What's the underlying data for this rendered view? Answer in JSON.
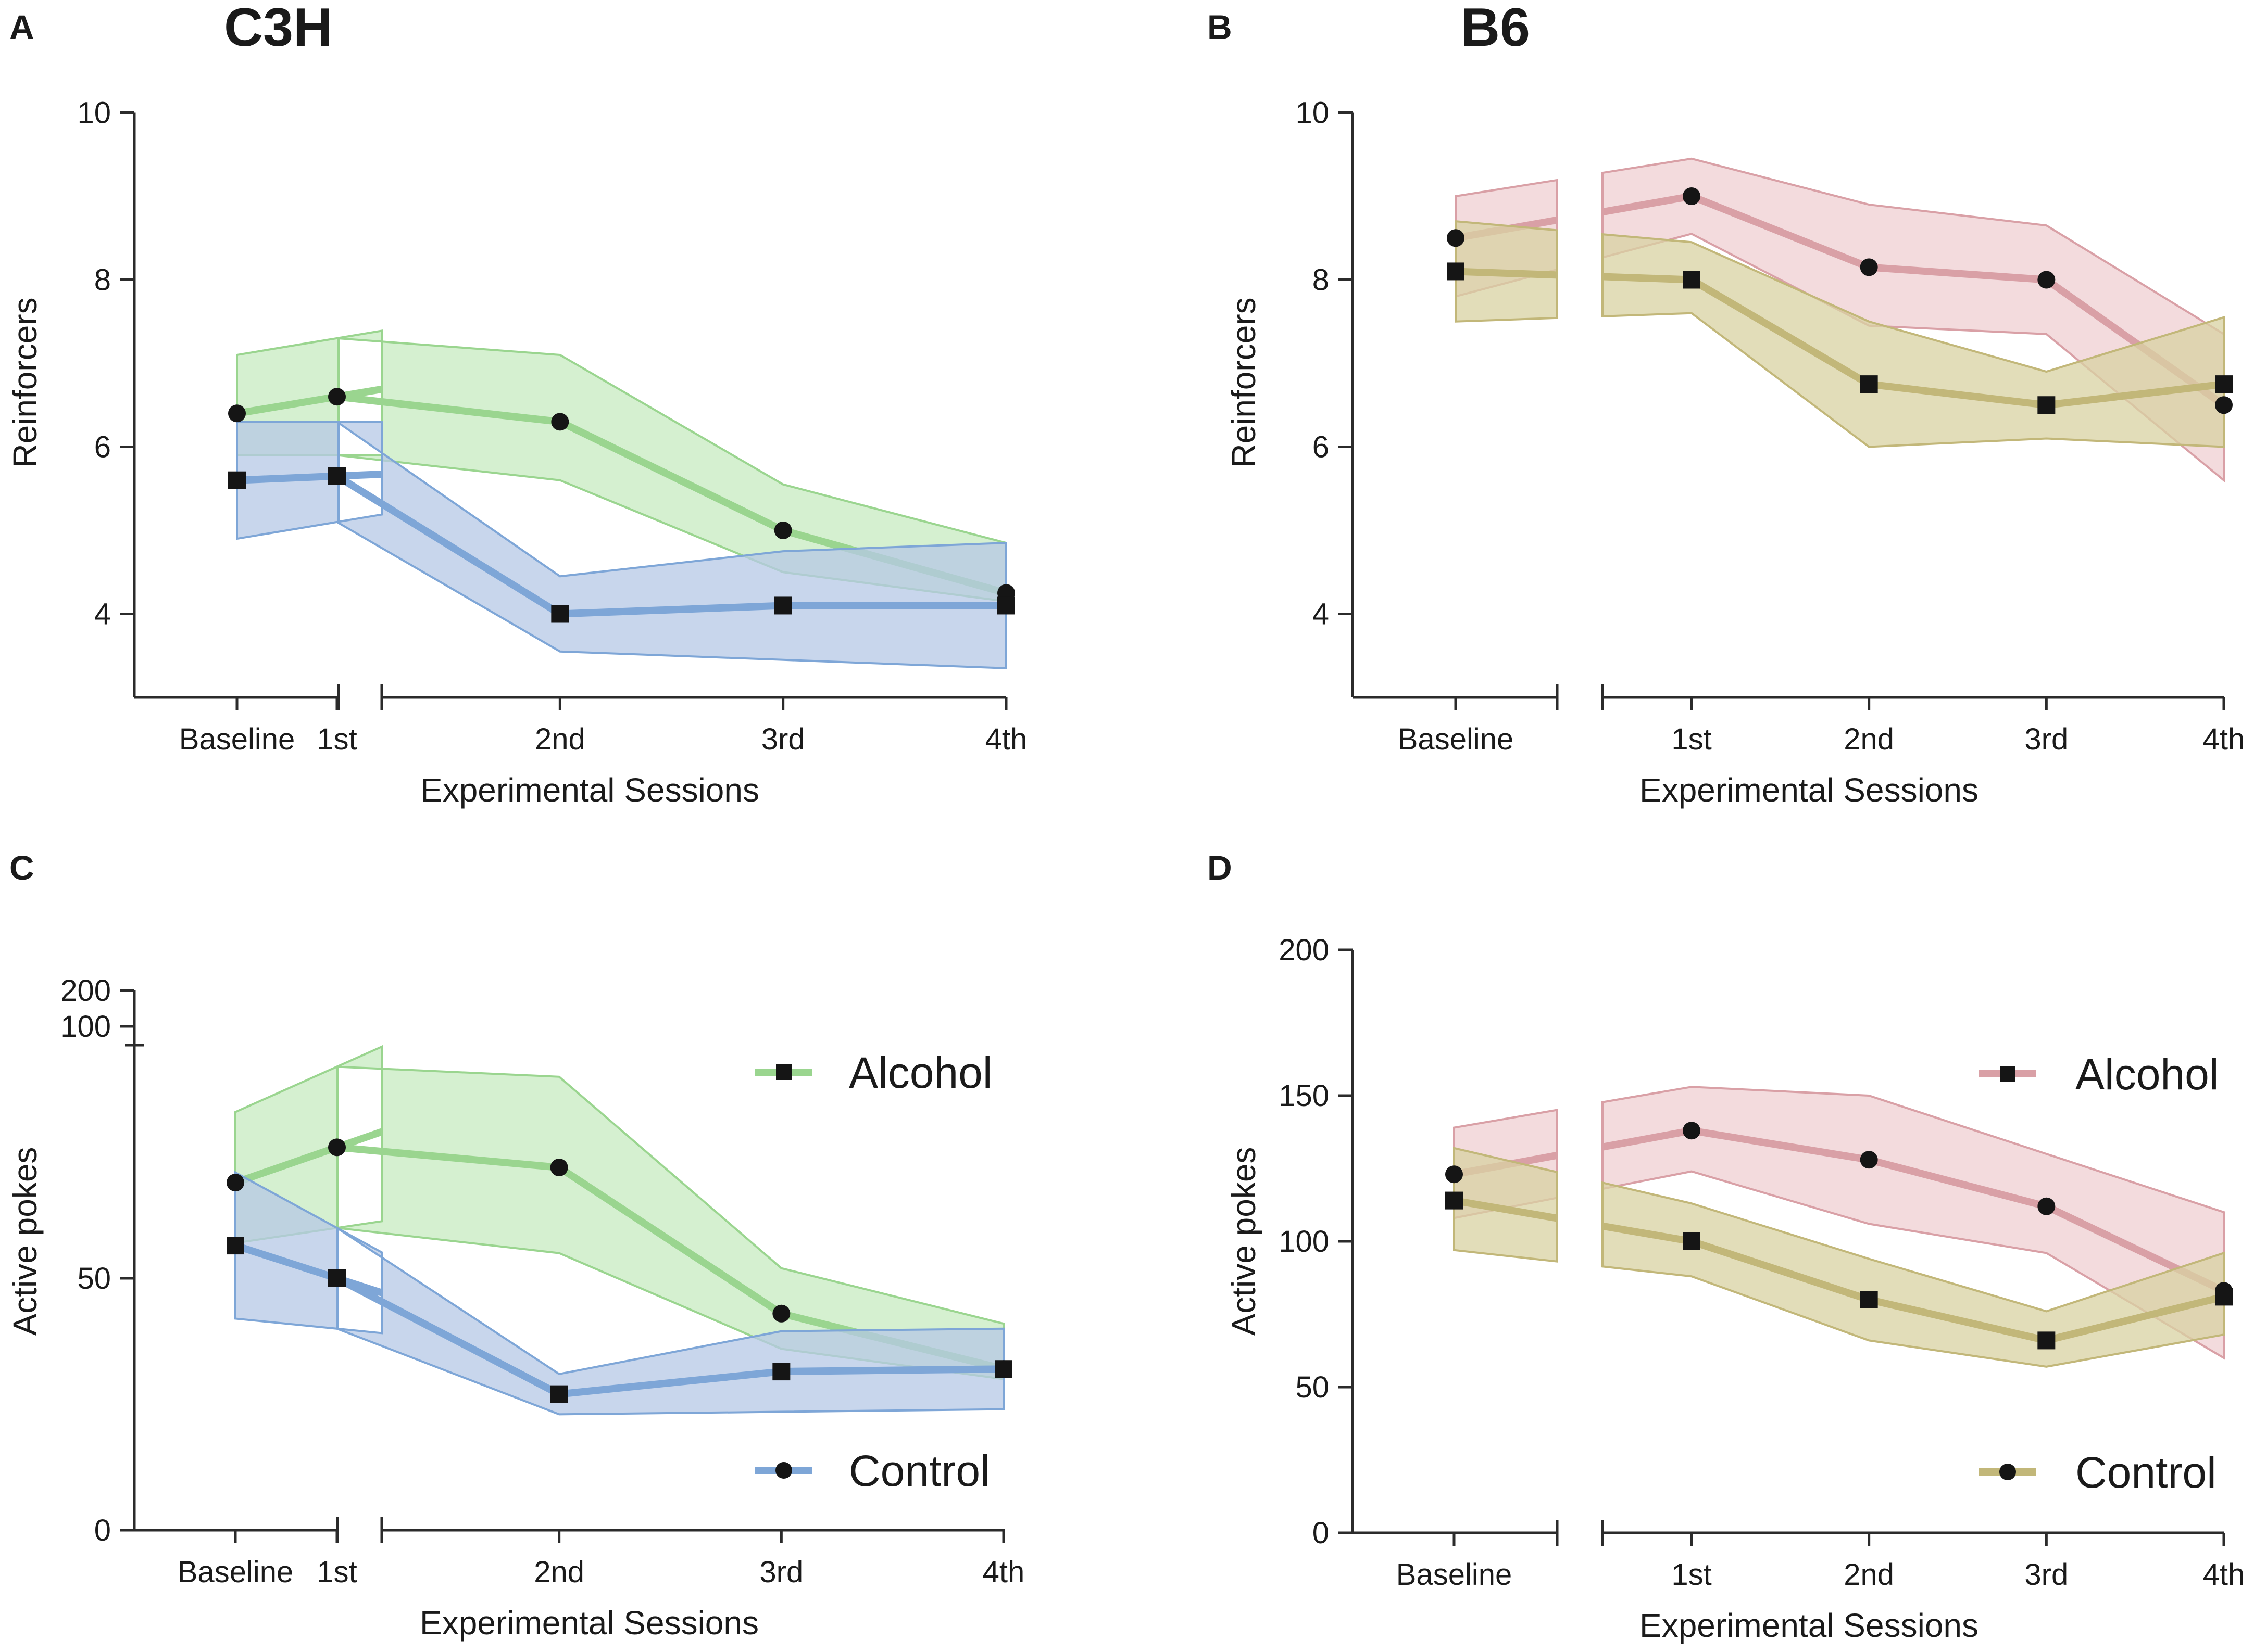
{
  "figure": {
    "panels": [
      {
        "letter": "A",
        "strain": "C3H"
      },
      {
        "letter": "B",
        "strain": "B6"
      },
      {
        "letter": "C",
        "strain": ""
      },
      {
        "letter": "D",
        "strain": ""
      }
    ]
  },
  "chart_data": [
    {
      "panel": "A",
      "type": "line",
      "title": "C3H",
      "xlabel": "Experimental Sessions",
      "ylabel": "Reinforcers",
      "categories": [
        "Baseline",
        "1st",
        "2nd",
        "3rd",
        "4th"
      ],
      "ylim": [
        3,
        10
      ],
      "yticks": [
        4,
        6,
        8,
        10
      ],
      "ytick_labels": [
        "4",
        "6",
        "8",
        "10"
      ],
      "series": [
        {
          "name": "Alcohol",
          "color": "#9ad58f",
          "fill": "#c7ebc0",
          "marker": "circle",
          "values": [
            6.4,
            6.6,
            6.3,
            5.0,
            4.25
          ],
          "lower": [
            5.9,
            5.9,
            5.6,
            4.5,
            4.15
          ],
          "upper": [
            7.1,
            7.3,
            7.1,
            5.55,
            4.85
          ]
        },
        {
          "name": "Control",
          "color": "#7ea6d7",
          "fill": "#b6c8e6",
          "marker": "square",
          "values": [
            5.6,
            5.65,
            4.0,
            4.1,
            4.1
          ],
          "lower": [
            4.9,
            5.1,
            3.55,
            3.45,
            3.35
          ],
          "upper": [
            6.3,
            6.3,
            4.45,
            4.75,
            4.85
          ]
        }
      ]
    },
    {
      "panel": "B",
      "type": "line",
      "title": "B6",
      "xlabel": "Experimental Sessions",
      "ylabel": "Reinforcers",
      "categories": [
        "Baseline",
        "1st",
        "2nd",
        "3rd",
        "4th"
      ],
      "ylim": [
        3,
        10
      ],
      "yticks": [
        4,
        6,
        8,
        10
      ],
      "ytick_labels": [
        "4",
        "6",
        "8",
        "10"
      ],
      "series": [
        {
          "name": "Alcohol",
          "color": "#d9a0a6",
          "fill": "#efcfd1",
          "marker": "circle",
          "values": [
            8.5,
            9.0,
            8.15,
            8.0,
            6.5
          ],
          "lower": [
            7.8,
            8.55,
            7.45,
            7.35,
            5.6
          ],
          "upper": [
            9.0,
            9.45,
            8.9,
            8.65,
            7.35
          ]
        },
        {
          "name": "Control",
          "color": "#c2b779",
          "fill": "#d8d1a2",
          "marker": "square",
          "values": [
            8.1,
            8.0,
            6.75,
            6.5,
            6.75
          ],
          "lower": [
            7.5,
            7.6,
            6.0,
            6.1,
            6.0
          ],
          "upper": [
            8.7,
            8.45,
            7.5,
            6.9,
            7.55
          ]
        }
      ]
    },
    {
      "panel": "C",
      "type": "line",
      "xlabel": "Experimental Sessions",
      "ylabel": "Active pokes",
      "categories": [
        "Baseline",
        "1st",
        "2nd",
        "3rd",
        "4th"
      ],
      "ylim": [
        0,
        200
      ],
      "yticks": [
        0,
        50,
        100,
        200
      ],
      "ytick_labels": [
        "0",
        "50",
        "100",
        "200"
      ],
      "axis_break": [
        100,
        200
      ],
      "legend": {
        "location": "right",
        "items": [
          "Alcohol",
          "Control"
        ]
      },
      "series": [
        {
          "name": "Alcohol",
          "color": "#9ad58f",
          "fill": "#c7ebc0",
          "marker": "circle",
          "values": [
            69,
            76,
            72,
            43,
            32
          ],
          "lower": [
            57,
            60,
            55,
            36,
            30
          ],
          "upper": [
            83,
            92,
            90,
            52,
            41
          ]
        },
        {
          "name": "Control",
          "color": "#7ea6d7",
          "fill": "#b6c8e6",
          "marker": "square",
          "values": [
            56.5,
            50,
            27,
            31.5,
            32
          ],
          "lower": [
            42,
            40,
            23,
            23.5,
            24
          ],
          "upper": [
            71,
            60,
            31,
            39.5,
            40
          ]
        }
      ]
    },
    {
      "panel": "D",
      "type": "line",
      "xlabel": "Experimental Sessions",
      "ylabel": "Active pokes",
      "categories": [
        "Baseline",
        "1st",
        "2nd",
        "3rd",
        "4th"
      ],
      "ylim": [
        0,
        200
      ],
      "yticks": [
        0,
        50,
        100,
        150,
        200
      ],
      "ytick_labels": [
        "0",
        "50",
        "100",
        "150",
        "200"
      ],
      "legend": {
        "location": "right",
        "items": [
          "Alcohol",
          "Control"
        ]
      },
      "series": [
        {
          "name": "Alcohol",
          "color": "#d9a0a6",
          "fill": "#efcfd1",
          "marker": "circle",
          "values": [
            123,
            138,
            128,
            112,
            83
          ],
          "lower": [
            108,
            124,
            106,
            96,
            60
          ],
          "upper": [
            139,
            153,
            150,
            130,
            110
          ]
        },
        {
          "name": "Control",
          "color": "#c2b779",
          "fill": "#d8d1a2",
          "marker": "square",
          "values": [
            114,
            100,
            80,
            66,
            81
          ],
          "lower": [
            97,
            88,
            66,
            57,
            68
          ],
          "upper": [
            132,
            113,
            94,
            76,
            96
          ]
        }
      ]
    }
  ]
}
